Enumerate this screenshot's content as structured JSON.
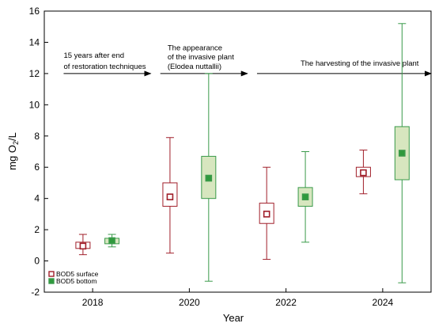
{
  "chart_data": {
    "type": "box",
    "xlabel": "Year",
    "ylabel_main": "mg O",
    "ylabel_sub": "2",
    "ylabel_tail": "/L",
    "ylim": [
      -2,
      16
    ],
    "yticks": [
      -2,
      0,
      2,
      4,
      6,
      8,
      10,
      12,
      14,
      16
    ],
    "xlim": [
      2017,
      2025
    ],
    "xticks": [
      2018,
      2020,
      2022,
      2024
    ],
    "series": [
      {
        "name": "BOD5 surface",
        "stroke": "#a11f2a",
        "fill": "#ffffff",
        "marker_fill": "#ffffff",
        "boxes": [
          {
            "x": 2017.8,
            "min": 0.4,
            "q1": 0.8,
            "median": 0.95,
            "q3": 1.2,
            "max": 1.7
          },
          {
            "x": 2019.6,
            "min": 0.5,
            "q1": 3.5,
            "median": 4.1,
            "q3": 5.0,
            "max": 7.9
          },
          {
            "x": 2021.6,
            "min": 0.1,
            "q1": 2.4,
            "median": 3.0,
            "q3": 3.7,
            "max": 6.0
          },
          {
            "x": 2023.6,
            "min": 4.3,
            "q1": 5.4,
            "median": 5.65,
            "q3": 6.0,
            "max": 7.1
          }
        ]
      },
      {
        "name": "BOD5 bottom",
        "stroke": "#3a9a4a",
        "fill": "#d7e6bf",
        "marker_fill": "#2e9a3c",
        "boxes": [
          {
            "x": 2018.4,
            "min": 0.9,
            "q1": 1.1,
            "median": 1.3,
            "q3": 1.45,
            "max": 1.7
          },
          {
            "x": 2020.4,
            "min": -1.3,
            "q1": 4.0,
            "median": 5.3,
            "q3": 6.7,
            "max": 12.0
          },
          {
            "x": 2022.4,
            "min": 1.2,
            "q1": 3.5,
            "median": 4.1,
            "q3": 4.7,
            "max": 7.0
          },
          {
            "x": 2024.4,
            "min": -1.4,
            "q1": 5.2,
            "median": 6.9,
            "q3": 8.6,
            "max": 15.2
          }
        ]
      }
    ],
    "annotations": [
      {
        "lines": [
          "15 years after end",
          "of restoration techniques"
        ],
        "text_x": 2017.4,
        "text_y": [
          13.0,
          12.3
        ],
        "arrow": {
          "x1": 2017.4,
          "x2": 2019.2,
          "y": 12.0
        }
      },
      {
        "lines": [
          "The appearance",
          "of the invasive plant",
          "(Elodea nuttallii)"
        ],
        "text_x": 2019.55,
        "text_y": [
          13.5,
          12.9,
          12.3
        ],
        "arrow": {
          "x1": 2019.4,
          "x2": 2021.2,
          "y": 12.0
        }
      },
      {
        "lines": [
          "The harvesting of the invasive plant"
        ],
        "text_x": 2022.3,
        "text_y": [
          12.5
        ],
        "arrow": {
          "x1": 2021.4,
          "x2": 2025.0,
          "y": 12.0
        }
      }
    ],
    "legend": {
      "placement": "bottom-left",
      "items": [
        "BOD5 surface",
        "BOD5 bottom"
      ]
    }
  }
}
